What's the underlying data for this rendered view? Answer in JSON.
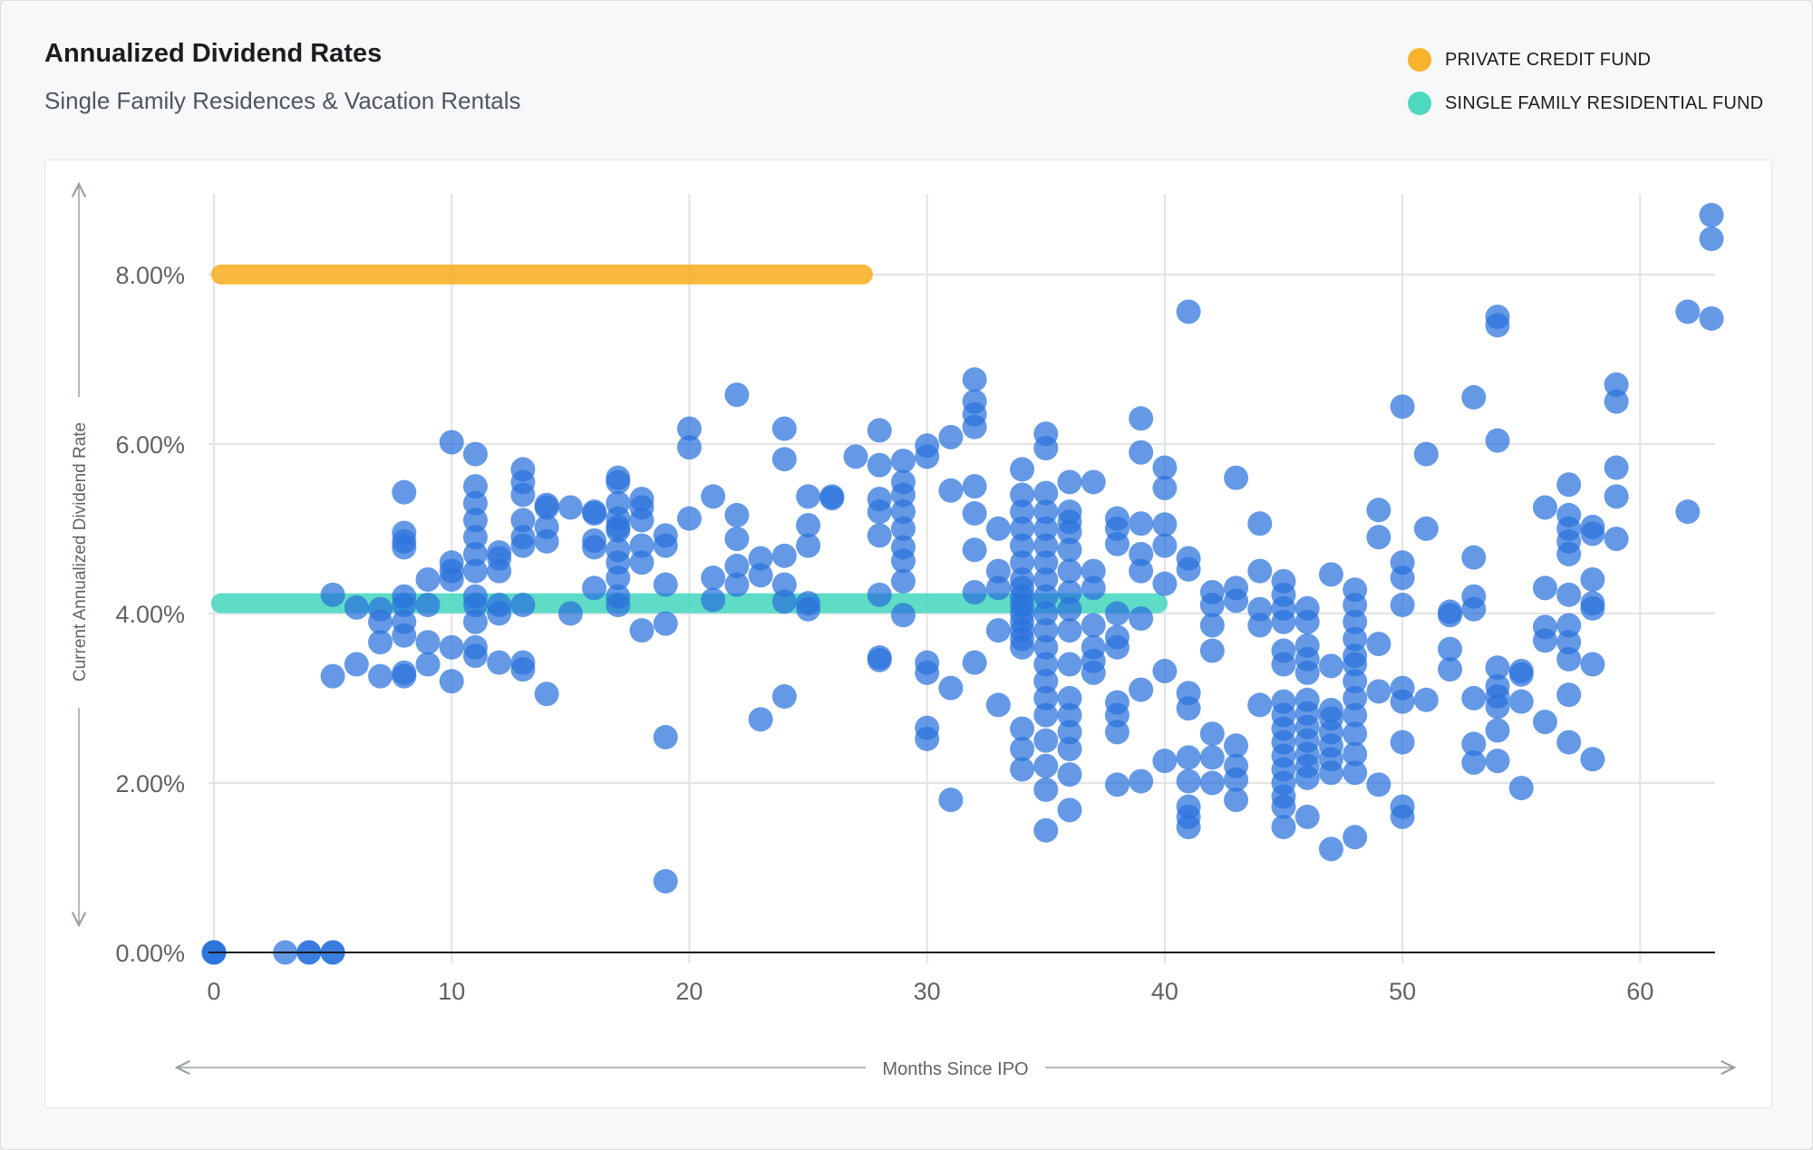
{
  "header": {
    "title": "Annualized Dividend Rates",
    "subtitle": "Single Family Residences & Vacation Rentals"
  },
  "legend": [
    {
      "label": "PRIVATE CREDIT FUND",
      "color": "#f9b22b"
    },
    {
      "label": "SINGLE FAMILY RESIDENTIAL FUND",
      "color": "#4dd9c0"
    }
  ],
  "colors": {
    "points": "#2a72dc",
    "grid": "#e1e2e5",
    "text": "#5f6368"
  },
  "chart_data": {
    "type": "scatter",
    "xlabel": "Months Since IPO",
    "ylabel": "Current Annualized Dividend Rate",
    "xlim": [
      0,
      63
    ],
    "ylim": [
      0,
      8.8
    ],
    "xticks": [
      0,
      10,
      20,
      30,
      40,
      50,
      60
    ],
    "xtick_labels": [
      "0",
      "10",
      "20",
      "30",
      "40",
      "50",
      "60"
    ],
    "yticks": [
      0,
      2,
      4,
      6,
      8
    ],
    "ytick_labels": [
      "0.00%",
      "2.00%",
      "4.00%",
      "6.00%",
      "8.00%"
    ],
    "grid": true,
    "legend_position": "top-right",
    "reference_lines": [
      {
        "name": "PRIVATE CREDIT FUND",
        "y": 8.0,
        "x_start": 0.3,
        "x_end": 27.3,
        "color": "#f9b22b"
      },
      {
        "name": "SINGLE FAMILY RESIDENTIAL FUND",
        "y": 4.12,
        "x_start": 0.3,
        "x_end": 39.7,
        "color": "#4dd9c0"
      }
    ],
    "points": [
      [
        0,
        0
      ],
      [
        0,
        0
      ],
      [
        0,
        0
      ],
      [
        3,
        0
      ],
      [
        4,
        0
      ],
      [
        4,
        0
      ],
      [
        5,
        0
      ],
      [
        5,
        0
      ],
      [
        5,
        3.26
      ],
      [
        5,
        4.22
      ],
      [
        6,
        3.4
      ],
      [
        6,
        4.07
      ],
      [
        7,
        3.26
      ],
      [
        7,
        3.66
      ],
      [
        7,
        3.9
      ],
      [
        7,
        4.05
      ],
      [
        8,
        3.26
      ],
      [
        8,
        3.3
      ],
      [
        8,
        3.74
      ],
      [
        8,
        3.9
      ],
      [
        8,
        4.1
      ],
      [
        8,
        4.2
      ],
      [
        8,
        4.78
      ],
      [
        8,
        4.85
      ],
      [
        8,
        4.95
      ],
      [
        8,
        5.43
      ],
      [
        9,
        3.4
      ],
      [
        9,
        3.66
      ],
      [
        9,
        4.1
      ],
      [
        9,
        4.4
      ],
      [
        10,
        3.2
      ],
      [
        10,
        3.6
      ],
      [
        10,
        4.4
      ],
      [
        10,
        4.5
      ],
      [
        10,
        4.6
      ],
      [
        10,
        6.02
      ],
      [
        11,
        3.5
      ],
      [
        11,
        3.6
      ],
      [
        11,
        3.9
      ],
      [
        11,
        4.1
      ],
      [
        11,
        4.2
      ],
      [
        11,
        4.5
      ],
      [
        11,
        4.7
      ],
      [
        11,
        4.9
      ],
      [
        11,
        5.1
      ],
      [
        11,
        5.3
      ],
      [
        11,
        5.5
      ],
      [
        11,
        5.88
      ],
      [
        12,
        3.42
      ],
      [
        12,
        4.0
      ],
      [
        12,
        4.1
      ],
      [
        12,
        4.5
      ],
      [
        12,
        4.65
      ],
      [
        12,
        4.72
      ],
      [
        13,
        3.34
      ],
      [
        13,
        3.42
      ],
      [
        13,
        4.1
      ],
      [
        13,
        4.8
      ],
      [
        13,
        4.9
      ],
      [
        13,
        5.1
      ],
      [
        13,
        5.4
      ],
      [
        13,
        5.55
      ],
      [
        13,
        5.7
      ],
      [
        14,
        3.05
      ],
      [
        14,
        4.85
      ],
      [
        14,
        5.02
      ],
      [
        14,
        5.25
      ],
      [
        14,
        5.28
      ],
      [
        15,
        4.0
      ],
      [
        15,
        5.25
      ],
      [
        16,
        4.3
      ],
      [
        16,
        4.78
      ],
      [
        16,
        4.86
      ],
      [
        16,
        5.18
      ],
      [
        16,
        5.2
      ],
      [
        17,
        4.1
      ],
      [
        17,
        4.2
      ],
      [
        17,
        4.42
      ],
      [
        17,
        4.6
      ],
      [
        17,
        4.75
      ],
      [
        17,
        4.98
      ],
      [
        17,
        5.02
      ],
      [
        17,
        5.12
      ],
      [
        17,
        5.3
      ],
      [
        17,
        5.55
      ],
      [
        17,
        5.6
      ],
      [
        18,
        3.8
      ],
      [
        18,
        4.6
      ],
      [
        18,
        4.8
      ],
      [
        18,
        5.1
      ],
      [
        18,
        5.25
      ],
      [
        18,
        5.35
      ],
      [
        19,
        0.84
      ],
      [
        19,
        2.54
      ],
      [
        19,
        3.88
      ],
      [
        19,
        4.34
      ],
      [
        19,
        4.8
      ],
      [
        19,
        4.92
      ],
      [
        20,
        5.12
      ],
      [
        20,
        5.96
      ],
      [
        20,
        6.18
      ],
      [
        21,
        4.16
      ],
      [
        21,
        4.42
      ],
      [
        21,
        5.38
      ],
      [
        22,
        4.34
      ],
      [
        22,
        4.56
      ],
      [
        22,
        4.88
      ],
      [
        22,
        5.16
      ],
      [
        22,
        6.58
      ],
      [
        23,
        2.75
      ],
      [
        23,
        4.45
      ],
      [
        23,
        4.65
      ],
      [
        24,
        3.02
      ],
      [
        24,
        4.14
      ],
      [
        24,
        4.34
      ],
      [
        24,
        4.68
      ],
      [
        24,
        5.82
      ],
      [
        24,
        6.18
      ],
      [
        25,
        4.05
      ],
      [
        25,
        4.12
      ],
      [
        25,
        4.8
      ],
      [
        25,
        5.04
      ],
      [
        25,
        5.38
      ],
      [
        26,
        5.36
      ],
      [
        26,
        5.38
      ],
      [
        27,
        5.85
      ],
      [
        28,
        3.45
      ],
      [
        28,
        3.48
      ],
      [
        28,
        4.22
      ],
      [
        28,
        4.92
      ],
      [
        28,
        5.2
      ],
      [
        28,
        5.35
      ],
      [
        28,
        5.75
      ],
      [
        28,
        6.16
      ],
      [
        29,
        3.98
      ],
      [
        29,
        4.38
      ],
      [
        29,
        4.62
      ],
      [
        29,
        4.78
      ],
      [
        29,
        5.0
      ],
      [
        29,
        5.2
      ],
      [
        29,
        5.4
      ],
      [
        29,
        5.55
      ],
      [
        29,
        5.8
      ],
      [
        30,
        2.52
      ],
      [
        30,
        2.65
      ],
      [
        30,
        3.3
      ],
      [
        30,
        3.42
      ],
      [
        30,
        5.85
      ],
      [
        30,
        5.98
      ],
      [
        31,
        1.8
      ],
      [
        31,
        3.12
      ],
      [
        31,
        5.45
      ],
      [
        31,
        6.08
      ],
      [
        32,
        3.42
      ],
      [
        32,
        4.25
      ],
      [
        32,
        4.75
      ],
      [
        32,
        5.18
      ],
      [
        32,
        5.5
      ],
      [
        32,
        6.2
      ],
      [
        32,
        6.35
      ],
      [
        32,
        6.5
      ],
      [
        32,
        6.76
      ],
      [
        33,
        2.92
      ],
      [
        33,
        3.8
      ],
      [
        33,
        4.3
      ],
      [
        33,
        4.5
      ],
      [
        33,
        5.0
      ],
      [
        34,
        2.16
      ],
      [
        34,
        2.4
      ],
      [
        34,
        2.64
      ],
      [
        34,
        3.6
      ],
      [
        34,
        3.7
      ],
      [
        34,
        3.8
      ],
      [
        34,
        3.9
      ],
      [
        34,
        4.0
      ],
      [
        34,
        4.1
      ],
      [
        34,
        4.2
      ],
      [
        34,
        4.3
      ],
      [
        34,
        4.4
      ],
      [
        34,
        4.6
      ],
      [
        34,
        4.8
      ],
      [
        34,
        5.0
      ],
      [
        34,
        5.2
      ],
      [
        34,
        5.4
      ],
      [
        34,
        5.7
      ],
      [
        35,
        1.44
      ],
      [
        35,
        1.92
      ],
      [
        35,
        2.2
      ],
      [
        35,
        2.5
      ],
      [
        35,
        2.8
      ],
      [
        35,
        3.0
      ],
      [
        35,
        3.2
      ],
      [
        35,
        3.4
      ],
      [
        35,
        3.6
      ],
      [
        35,
        3.8
      ],
      [
        35,
        4.0
      ],
      [
        35,
        4.2
      ],
      [
        35,
        4.4
      ],
      [
        35,
        4.6
      ],
      [
        35,
        4.8
      ],
      [
        35,
        5.0
      ],
      [
        35,
        5.2
      ],
      [
        35,
        5.42
      ],
      [
        35,
        5.95
      ],
      [
        35,
        6.12
      ],
      [
        36,
        1.68
      ],
      [
        36,
        2.1
      ],
      [
        36,
        2.4
      ],
      [
        36,
        2.6
      ],
      [
        36,
        2.8
      ],
      [
        36,
        3.0
      ],
      [
        36,
        3.4
      ],
      [
        36,
        3.8
      ],
      [
        36,
        4.05
      ],
      [
        36,
        4.25
      ],
      [
        36,
        4.5
      ],
      [
        36,
        4.75
      ],
      [
        36,
        4.96
      ],
      [
        36,
        5.08
      ],
      [
        36,
        5.2
      ],
      [
        36,
        5.55
      ],
      [
        37,
        3.3
      ],
      [
        37,
        3.44
      ],
      [
        37,
        3.6
      ],
      [
        37,
        3.86
      ],
      [
        37,
        4.3
      ],
      [
        37,
        4.5
      ],
      [
        37,
        5.55
      ],
      [
        38,
        1.98
      ],
      [
        38,
        2.6
      ],
      [
        38,
        2.8
      ],
      [
        38,
        2.95
      ],
      [
        38,
        3.6
      ],
      [
        38,
        3.72
      ],
      [
        38,
        4.0
      ],
      [
        38,
        4.82
      ],
      [
        38,
        5.0
      ],
      [
        38,
        5.12
      ],
      [
        39,
        2.02
      ],
      [
        39,
        3.1
      ],
      [
        39,
        3.94
      ],
      [
        39,
        4.5
      ],
      [
        39,
        4.7
      ],
      [
        39,
        5.06
      ],
      [
        39,
        5.9
      ],
      [
        39,
        6.3
      ],
      [
        40,
        2.26
      ],
      [
        40,
        3.32
      ],
      [
        40,
        4.35
      ],
      [
        40,
        4.8
      ],
      [
        40,
        5.05
      ],
      [
        40,
        5.48
      ],
      [
        40,
        5.72
      ],
      [
        41,
        1.48
      ],
      [
        41,
        1.6
      ],
      [
        41,
        1.72
      ],
      [
        41,
        2.02
      ],
      [
        41,
        2.3
      ],
      [
        41,
        2.88
      ],
      [
        41,
        3.06
      ],
      [
        41,
        4.52
      ],
      [
        41,
        4.65
      ],
      [
        41,
        7.56
      ],
      [
        42,
        2.0
      ],
      [
        42,
        2.3
      ],
      [
        42,
        2.58
      ],
      [
        42,
        3.56
      ],
      [
        42,
        3.86
      ],
      [
        42,
        4.1
      ],
      [
        42,
        4.25
      ],
      [
        43,
        1.8
      ],
      [
        43,
        2.04
      ],
      [
        43,
        2.2
      ],
      [
        43,
        2.44
      ],
      [
        43,
        4.15
      ],
      [
        43,
        4.3
      ],
      [
        43,
        5.6
      ],
      [
        44,
        2.92
      ],
      [
        44,
        3.86
      ],
      [
        44,
        4.05
      ],
      [
        44,
        4.5
      ],
      [
        44,
        5.06
      ],
      [
        45,
        1.48
      ],
      [
        45,
        1.72
      ],
      [
        45,
        1.84
      ],
      [
        45,
        2.0
      ],
      [
        45,
        2.16
      ],
      [
        45,
        2.32
      ],
      [
        45,
        2.48
      ],
      [
        45,
        2.64
      ],
      [
        45,
        2.8
      ],
      [
        45,
        2.96
      ],
      [
        45,
        3.4
      ],
      [
        45,
        3.56
      ],
      [
        45,
        3.9
      ],
      [
        45,
        4.06
      ],
      [
        45,
        4.22
      ],
      [
        45,
        4.38
      ],
      [
        46,
        1.6
      ],
      [
        46,
        2.06
      ],
      [
        46,
        2.2
      ],
      [
        46,
        2.34
      ],
      [
        46,
        2.5
      ],
      [
        46,
        2.66
      ],
      [
        46,
        2.82
      ],
      [
        46,
        2.98
      ],
      [
        46,
        3.3
      ],
      [
        46,
        3.46
      ],
      [
        46,
        3.62
      ],
      [
        46,
        3.9
      ],
      [
        46,
        4.06
      ],
      [
        47,
        1.22
      ],
      [
        47,
        2.12
      ],
      [
        47,
        2.28
      ],
      [
        47,
        2.44
      ],
      [
        47,
        2.6
      ],
      [
        47,
        2.76
      ],
      [
        47,
        2.86
      ],
      [
        47,
        3.38
      ],
      [
        47,
        4.46
      ],
      [
        48,
        1.36
      ],
      [
        48,
        2.12
      ],
      [
        48,
        2.34
      ],
      [
        48,
        2.58
      ],
      [
        48,
        2.8
      ],
      [
        48,
        3.0
      ],
      [
        48,
        3.2
      ],
      [
        48,
        3.4
      ],
      [
        48,
        3.5
      ],
      [
        48,
        3.7
      ],
      [
        48,
        3.9
      ],
      [
        48,
        4.1
      ],
      [
        48,
        4.28
      ],
      [
        49,
        1.98
      ],
      [
        49,
        3.08
      ],
      [
        49,
        3.64
      ],
      [
        49,
        4.9
      ],
      [
        49,
        5.22
      ],
      [
        50,
        1.6
      ],
      [
        50,
        1.72
      ],
      [
        50,
        2.48
      ],
      [
        50,
        2.96
      ],
      [
        50,
        3.12
      ],
      [
        50,
        4.1
      ],
      [
        50,
        4.42
      ],
      [
        50,
        4.6
      ],
      [
        50,
        6.44
      ],
      [
        51,
        2.98
      ],
      [
        51,
        5.0
      ],
      [
        51,
        5.88
      ],
      [
        52,
        3.34
      ],
      [
        52,
        3.58
      ],
      [
        52,
        3.98
      ],
      [
        52,
        4.02
      ],
      [
        53,
        2.24
      ],
      [
        53,
        2.46
      ],
      [
        53,
        3.0
      ],
      [
        53,
        4.05
      ],
      [
        53,
        4.2
      ],
      [
        53,
        4.66
      ],
      [
        53,
        6.55
      ],
      [
        54,
        2.26
      ],
      [
        54,
        2.62
      ],
      [
        54,
        2.9
      ],
      [
        54,
        3.02
      ],
      [
        54,
        3.14
      ],
      [
        54,
        3.36
      ],
      [
        54,
        6.04
      ],
      [
        54,
        7.4
      ],
      [
        54,
        7.5
      ],
      [
        55,
        1.94
      ],
      [
        55,
        2.96
      ],
      [
        55,
        3.28
      ],
      [
        55,
        3.32
      ],
      [
        56,
        2.72
      ],
      [
        56,
        3.68
      ],
      [
        56,
        3.84
      ],
      [
        56,
        4.3
      ],
      [
        56,
        5.25
      ],
      [
        57,
        2.48
      ],
      [
        57,
        3.04
      ],
      [
        57,
        3.46
      ],
      [
        57,
        3.66
      ],
      [
        57,
        3.86
      ],
      [
        57,
        4.22
      ],
      [
        57,
        4.7
      ],
      [
        57,
        4.85
      ],
      [
        57,
        5.0
      ],
      [
        57,
        5.16
      ],
      [
        57,
        5.52
      ],
      [
        58,
        2.28
      ],
      [
        58,
        3.4
      ],
      [
        58,
        4.06
      ],
      [
        58,
        4.12
      ],
      [
        58,
        4.4
      ],
      [
        58,
        4.94
      ],
      [
        58,
        5.02
      ],
      [
        59,
        4.88
      ],
      [
        59,
        5.38
      ],
      [
        59,
        5.72
      ],
      [
        59,
        6.5
      ],
      [
        59,
        6.7
      ],
      [
        62,
        5.2
      ],
      [
        62,
        7.56
      ],
      [
        63,
        7.48
      ],
      [
        63,
        8.42
      ],
      [
        63,
        8.7
      ]
    ]
  }
}
